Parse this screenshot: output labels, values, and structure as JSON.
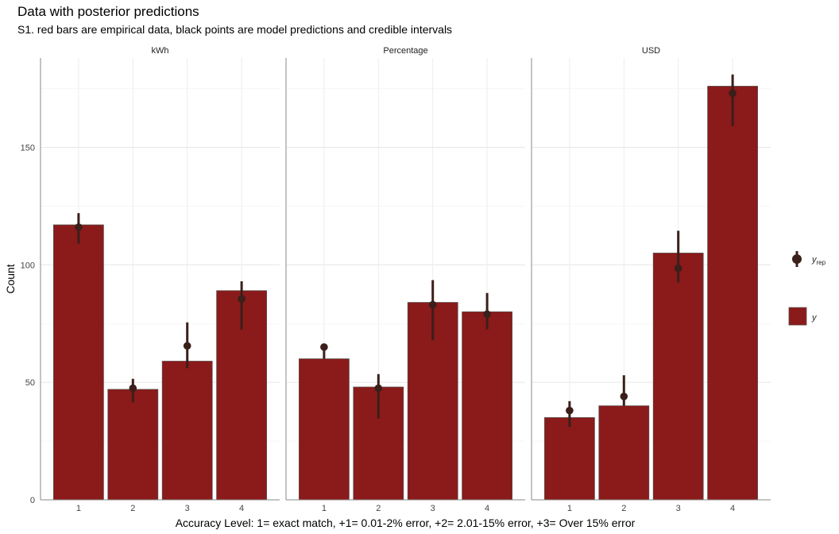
{
  "title": "Data with posterior predictions",
  "subtitle": "S1. red bars are empirical data, black points are model predictions and credible intervals",
  "chart_data": {
    "type": "bar",
    "xlabel": "Accuracy Level: 1= exact match,   +1= 0.01-2% error, +2= 2.01-15% error, +3= Over 15% error",
    "ylabel": "Count",
    "ylim": [
      0,
      188
    ],
    "yticks": [
      0,
      50,
      100,
      150
    ],
    "categories": [
      "1",
      "2",
      "3",
      "4"
    ],
    "bar_color": "#8b1a1a",
    "point_color": "#3a1f1a",
    "grid": true,
    "legend_position": "right",
    "legend": {
      "yrep_main": "y",
      "yrep_sub": "rep",
      "y": "y"
    },
    "panels": [
      {
        "name": "kWh",
        "values": [
          117,
          47,
          59,
          89
        ],
        "pred": [
          116,
          47.5,
          65.5,
          85.5
        ],
        "lo": [
          109,
          41.5,
          56,
          72.5
        ],
        "hi": [
          122,
          51.5,
          75.5,
          93
        ]
      },
      {
        "name": "Percentage",
        "values": [
          60,
          48,
          84,
          80
        ],
        "pred": [
          65,
          47.5,
          83,
          79
        ],
        "lo": [
          60,
          34.5,
          68,
          72.5
        ],
        "hi": [
          65,
          53.5,
          93.5,
          88
        ]
      },
      {
        "name": "USD",
        "values": [
          35,
          40,
          105,
          176
        ],
        "pred": [
          38,
          44,
          98.5,
          173
        ],
        "lo": [
          31,
          40,
          92.5,
          159
        ],
        "hi": [
          42,
          53,
          114.5,
          181
        ]
      }
    ]
  }
}
